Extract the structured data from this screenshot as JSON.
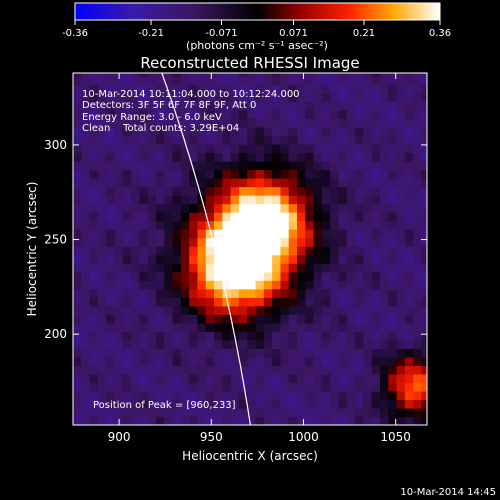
{
  "chart_data": {
    "type": "heatmap",
    "title": "Reconstructed RHESSI Image",
    "colorbar": {
      "ticks": [
        "-0.36",
        "-0.21",
        "-0.071",
        "0.071",
        "0.21",
        "0.36"
      ],
      "range": [
        -0.36,
        0.36
      ],
      "unit_label": "(photons cm⁻² s⁻¹ asec⁻²)",
      "colormap": "blue-purple-black-red-orange-yellow-white"
    },
    "xlabel": "Heliocentric X (arcsec)",
    "ylabel": "Heliocentric Y (arcsec)",
    "xlim": [
      875,
      1067
    ],
    "ylim": [
      152,
      338
    ],
    "xticks": [
      900,
      950,
      1000,
      1050
    ],
    "yticks": [
      200,
      250,
      300
    ],
    "annotations": {
      "time_range": "10-Mar-2014 10:11:04.000 to 10:12:24.000",
      "detectors": "Detectors: 3F 5F 6F 7F 8F 9F, Att 0",
      "energy": "Energy Range: 3.0 - 6.0 keV",
      "method": "Clean    Total counts: 3.29E+04",
      "peak": "Position of Peak = [960,233]"
    },
    "peak_position": [
      960,
      233
    ],
    "sources": [
      {
        "x": 960,
        "y": 233,
        "intensity": 0.36
      },
      {
        "x": 977,
        "y": 258,
        "intensity": 0.3
      },
      {
        "x": 1058,
        "y": 170,
        "intensity": 0.2
      }
    ],
    "limb": "solar limb arc drawn in white"
  },
  "footer": {
    "timestamp": "10-Mar-2014 14:45"
  }
}
